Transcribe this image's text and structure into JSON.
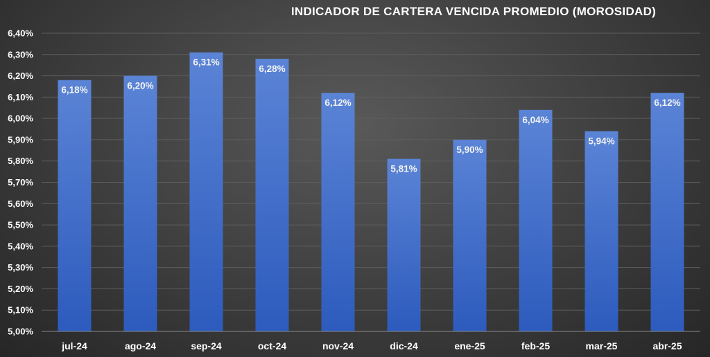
{
  "chart_data": {
    "type": "bar",
    "title": "INDICADOR DE CARTERA VENCIDA PROMEDIO (MOROSIDAD)",
    "xlabel": "",
    "ylabel": "",
    "categories": [
      "jul-24",
      "ago-24",
      "sep-24",
      "oct-24",
      "nov-24",
      "dic-24",
      "ene-25",
      "feb-25",
      "mar-25",
      "abr-25"
    ],
    "values": [
      6.18,
      6.2,
      6.31,
      6.28,
      6.12,
      5.81,
      5.9,
      6.04,
      5.94,
      6.12
    ],
    "value_labels": [
      "6,18%",
      "6,20%",
      "6,31%",
      "6,28%",
      "6,12%",
      "5,81%",
      "5,90%",
      "6,04%",
      "5,94%",
      "6,12%"
    ],
    "ylim": [
      5.0,
      6.4
    ],
    "yticks": [
      5.0,
      5.1,
      5.2,
      5.3,
      5.4,
      5.5,
      5.6,
      5.7,
      5.8,
      5.9,
      6.0,
      6.1,
      6.2,
      6.3,
      6.4
    ],
    "ytick_labels": [
      "5,00%",
      "5,10%",
      "5,20%",
      "5,30%",
      "5,40%",
      "5,50%",
      "5,60%",
      "5,70%",
      "5,80%",
      "5,90%",
      "6,00%",
      "6,10%",
      "6,20%",
      "6,30%",
      "6,40%"
    ],
    "grid": true,
    "legend": "none",
    "colors": {
      "bar_top": "#5b84d6",
      "bar_bottom": "#2d5bbd"
    }
  }
}
